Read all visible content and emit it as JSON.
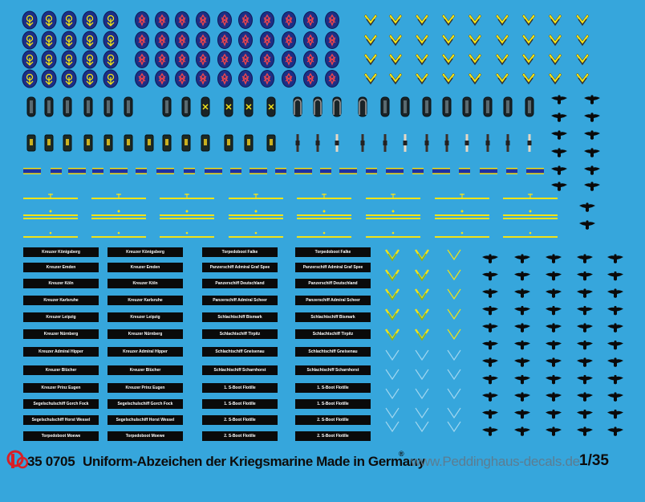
{
  "footer": {
    "logo_mark": "P",
    "product_number": "35 0705",
    "title": "Uniform-Abzeichen der Kriegsmarine Made in Germany",
    "trademark": "®",
    "website": "www.Peddinghaus-decals.de",
    "scale": "1/35"
  },
  "tally_columns": [
    [
      "Kreuzer Königsberg",
      "Kreuzer Emden",
      "Kreuzer Köln",
      "Kreuzer Karlsruhe",
      "Kreuzer Leipzig",
      "Kreuzer Nürnberg",
      "Kreuzer Admiral Hipper",
      "Kreuzer Blücher",
      "Kreuzer Prinz Eugen",
      "Segelschulschiff Gorch Fock",
      "Segelschulschiff Horst Wessel",
      "Torpedoboot Moewe"
    ],
    [
      "Kreuzer Königsberg",
      "Kreuzer Emden",
      "Kreuzer Köln",
      "Kreuzer Karlsruhe",
      "Kreuzer Leipzig",
      "Kreuzer Nürnberg",
      "Kreuzer Admiral Hipper",
      "Kreuzer Blücher",
      "Kreuzer Prinz Eugen",
      "Segelschulschiff Gorch Fock",
      "Segelschulschiff Horst Wessel",
      "Torpedoboot Moewe"
    ],
    [
      "Torpedoboot Falke",
      "Panzerschiff Admiral Graf Spee",
      "Panzerschiff Deutschland",
      "Panzerschiff Admiral Scheer",
      "Schlachtschiff Bismark",
      "Schlachtschiff Tirpitz",
      "Schlachtschiff Gneisenau",
      "Schlachtschiff Scharnhorst",
      "1. S-Boot Flotille",
      "1. S-Boot Flotille",
      "2. S-Boot Flotille",
      "2. S-Boot Flotille"
    ],
    [
      "Torpedoboot Falke",
      "Panzerschiff Admiral Graf Spee",
      "Panzerschiff Deutschland",
      "Panzerschiff Admiral Scheer",
      "Schlachtschiff Bismark",
      "Schlachtschiff Tirpitz",
      "Schlachtschiff Gneisenau",
      "Schlachtschiff Scharnhorst",
      "1. S-Boot Flotille",
      "1. S-Boot Flotille",
      "2. S-Boot Flotille",
      "2. S-Boot Flotille"
    ]
  ],
  "colors": {
    "background": "#36a6dc",
    "black": "#0a0a0a",
    "gold": "#f2e318",
    "navy": "#1c2f86",
    "red": "#e8454e",
    "footer_text": "#0d0d0d",
    "footer_web": "#5b7d92",
    "logo_red": "#d81f26"
  },
  "icons": {
    "trade_patch": "oval-insignia-icon",
    "chevron": "rank-chevron-icon",
    "shoulder_board": "shoulder-board-icon",
    "collar_tab": "collar-tab-icon",
    "eagle": "eagle-emblem-icon",
    "stripe": "cap-stripe-icon"
  }
}
